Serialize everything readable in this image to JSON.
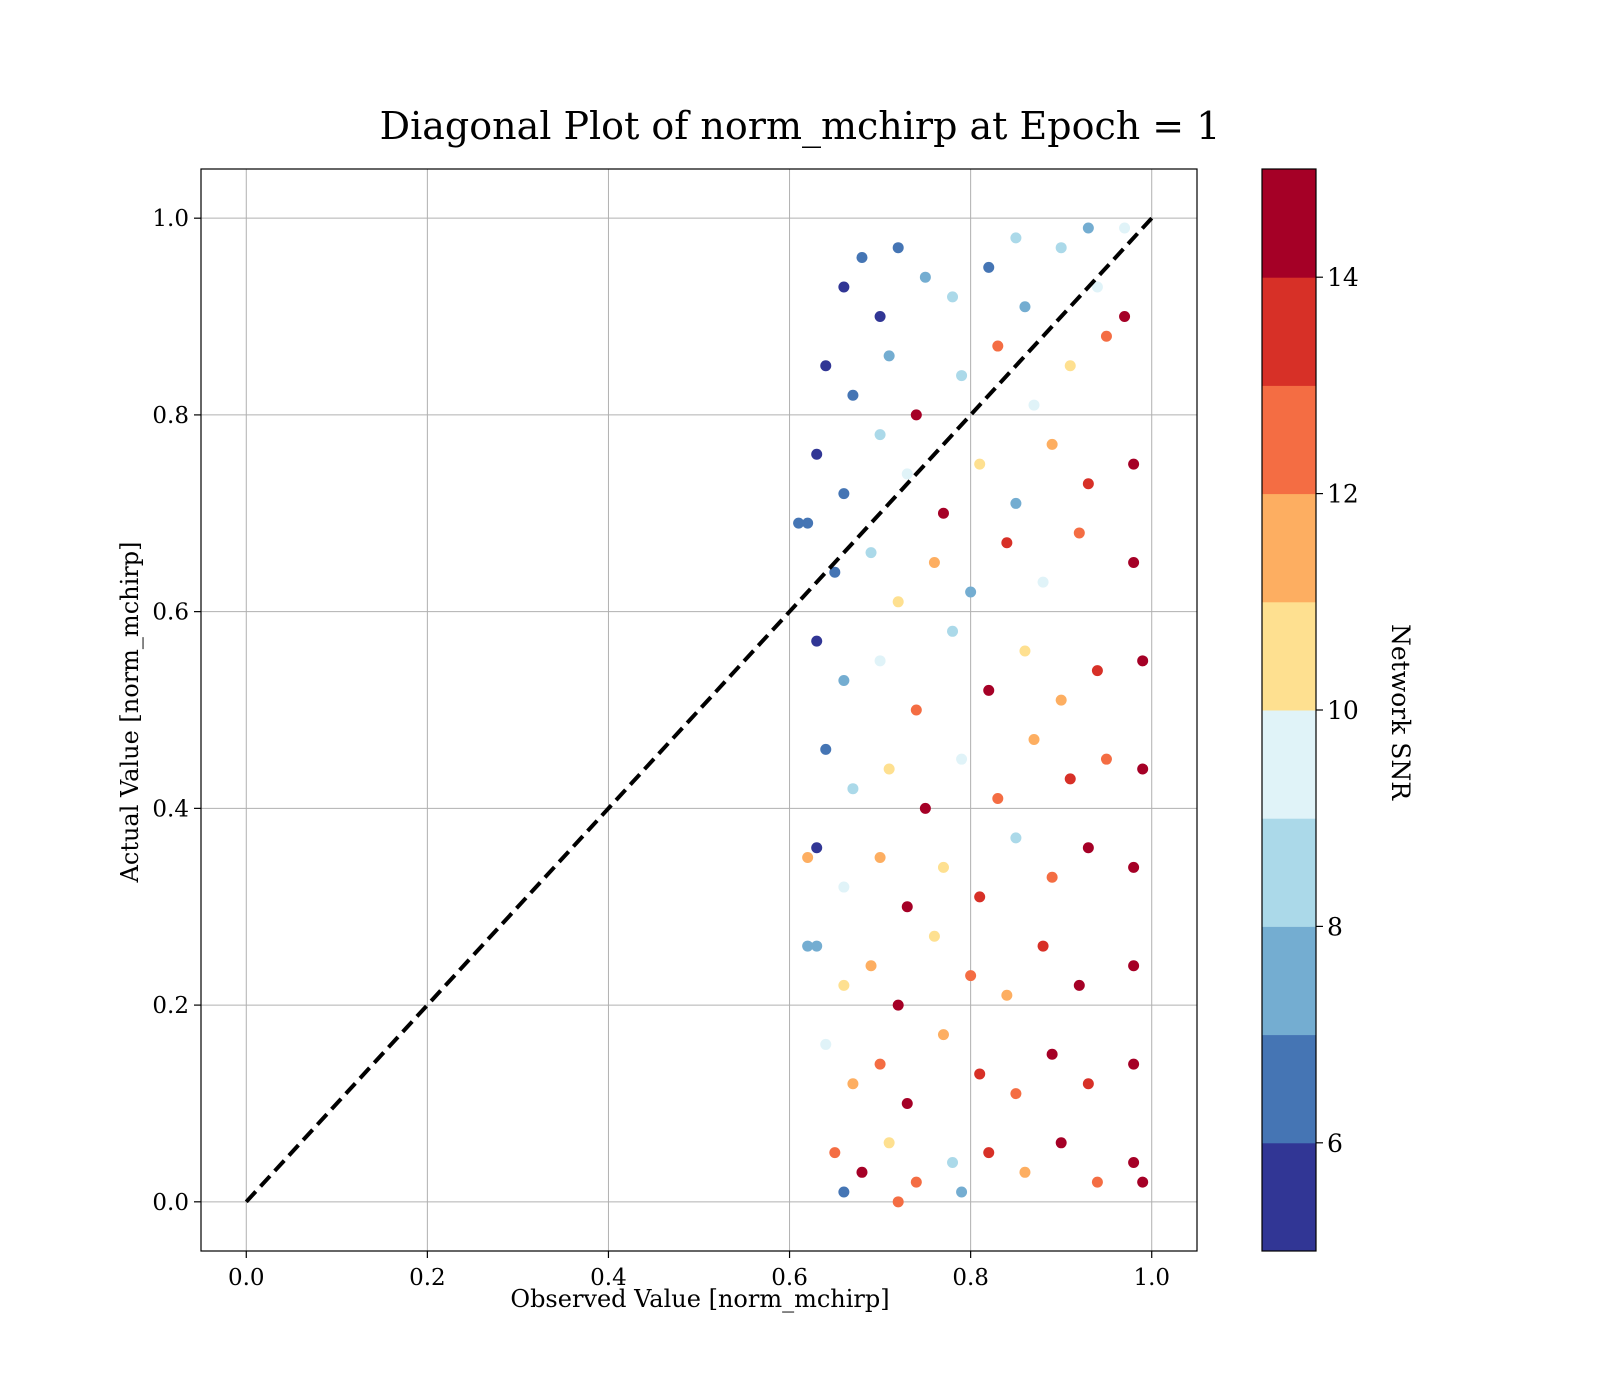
{
  "chart_data": {
    "type": "scatter",
    "title": "Diagonal Plot of norm_mchirp at Epoch = 1",
    "xlabel": "Observed Value [norm_mchirp]",
    "ylabel": "Actual Value [norm_mchirp]",
    "xlim": [
      -0.05,
      1.05
    ],
    "ylim": [
      -0.05,
      1.05
    ],
    "xticks": [
      "0.0",
      "0.2",
      "0.4",
      "0.6",
      "0.8",
      "1.0"
    ],
    "yticks": [
      "0.0",
      "0.2",
      "0.4",
      "0.6",
      "0.8",
      "1.0"
    ],
    "grid": true,
    "reference_line": {
      "x": [
        0,
        1
      ],
      "y": [
        0,
        1
      ],
      "style": "dashed",
      "color": "#000000"
    },
    "colorbar": {
      "label": "Network SNR",
      "range": [
        5,
        15
      ],
      "ticks": [
        "6",
        "8",
        "10",
        "12",
        "14"
      ],
      "colors": [
        "#313695",
        "#4575b4",
        "#74add1",
        "#abd9e9",
        "#e0f3f8",
        "#fee090",
        "#fdae61",
        "#f46d43",
        "#d73027",
        "#a50026"
      ]
    },
    "points_summary": {
      "observed_range": [
        0.61,
        1.0
      ],
      "actual_range": [
        0.0,
        1.0
      ],
      "description_of_trend": "dense column of high-SNR points near observed ≈ 0.97–1.0; lower-SNR points spread to observed ≈ 0.62"
    },
    "points": [
      [
        0.66,
        0.93,
        5.5
      ],
      [
        0.68,
        0.96,
        6.2
      ],
      [
        0.7,
        0.9,
        5.8
      ],
      [
        0.72,
        0.97,
        6.8
      ],
      [
        0.75,
        0.94,
        7.5
      ],
      [
        0.78,
        0.92,
        8.3
      ],
      [
        0.82,
        0.95,
        6.5
      ],
      [
        0.86,
        0.91,
        7.8
      ],
      [
        0.9,
        0.97,
        8.9
      ],
      [
        0.94,
        0.93,
        9.5
      ],
      [
        0.64,
        0.85,
        5.3
      ],
      [
        0.67,
        0.82,
        6.5
      ],
      [
        0.71,
        0.86,
        7.2
      ],
      [
        0.74,
        0.8,
        14.6
      ],
      [
        0.79,
        0.84,
        8.5
      ],
      [
        0.83,
        0.87,
        12.5
      ],
      [
        0.87,
        0.81,
        9.2
      ],
      [
        0.91,
        0.85,
        10.5
      ],
      [
        0.95,
        0.88,
        12.8
      ],
      [
        0.97,
        0.9,
        14.8
      ],
      [
        0.63,
        0.76,
        5.5
      ],
      [
        0.66,
        0.72,
        6.8
      ],
      [
        0.7,
        0.78,
        8.0
      ],
      [
        0.73,
        0.74,
        9.1
      ],
      [
        0.77,
        0.7,
        14.5
      ],
      [
        0.81,
        0.75,
        10.8
      ],
      [
        0.85,
        0.71,
        7.5
      ],
      [
        0.89,
        0.77,
        11.5
      ],
      [
        0.93,
        0.73,
        13.2
      ],
      [
        0.98,
        0.75,
        14.9
      ],
      [
        0.62,
        0.69,
        6.5
      ],
      [
        0.65,
        0.64,
        6.0
      ],
      [
        0.69,
        0.66,
        8.6
      ],
      [
        0.72,
        0.61,
        10.2
      ],
      [
        0.76,
        0.65,
        11.8
      ],
      [
        0.8,
        0.62,
        7.0
      ],
      [
        0.84,
        0.67,
        13.5
      ],
      [
        0.88,
        0.63,
        9.6
      ],
      [
        0.92,
        0.68,
        12.2
      ],
      [
        0.98,
        0.65,
        14.7
      ],
      [
        0.63,
        0.57,
        5.2
      ],
      [
        0.66,
        0.53,
        7.5
      ],
      [
        0.7,
        0.55,
        9.5
      ],
      [
        0.74,
        0.5,
        12.0
      ],
      [
        0.78,
        0.58,
        8.0
      ],
      [
        0.82,
        0.52,
        14.2
      ],
      [
        0.86,
        0.56,
        10.4
      ],
      [
        0.9,
        0.51,
        11.9
      ],
      [
        0.94,
        0.54,
        13.8
      ],
      [
        0.99,
        0.55,
        14.9
      ],
      [
        0.64,
        0.46,
        6.6
      ],
      [
        0.67,
        0.42,
        8.4
      ],
      [
        0.71,
        0.44,
        10.6
      ],
      [
        0.75,
        0.4,
        14.6
      ],
      [
        0.79,
        0.45,
        9.0
      ],
      [
        0.83,
        0.41,
        12.4
      ],
      [
        0.87,
        0.47,
        11.0
      ],
      [
        0.91,
        0.43,
        13.0
      ],
      [
        0.95,
        0.45,
        12.6
      ],
      [
        0.99,
        0.44,
        14.8
      ],
      [
        0.63,
        0.36,
        5.8
      ],
      [
        0.66,
        0.32,
        9.8
      ],
      [
        0.7,
        0.35,
        11.6
      ],
      [
        0.73,
        0.3,
        14.5
      ],
      [
        0.77,
        0.34,
        10.9
      ],
      [
        0.81,
        0.31,
        13.4
      ],
      [
        0.85,
        0.37,
        8.8
      ],
      [
        0.89,
        0.33,
        12.7
      ],
      [
        0.93,
        0.36,
        14.0
      ],
      [
        0.98,
        0.34,
        14.9
      ],
      [
        0.63,
        0.26,
        7.0
      ],
      [
        0.66,
        0.22,
        10.8
      ],
      [
        0.69,
        0.24,
        11.8
      ],
      [
        0.72,
        0.2,
        14.6
      ],
      [
        0.76,
        0.27,
        10.2
      ],
      [
        0.8,
        0.23,
        12.9
      ],
      [
        0.84,
        0.21,
        11.3
      ],
      [
        0.88,
        0.26,
        13.6
      ],
      [
        0.92,
        0.22,
        14.3
      ],
      [
        0.98,
        0.24,
        14.9
      ],
      [
        0.64,
        0.16,
        9.4
      ],
      [
        0.67,
        0.12,
        11.4
      ],
      [
        0.7,
        0.14,
        12.6
      ],
      [
        0.73,
        0.1,
        14.4
      ],
      [
        0.77,
        0.17,
        11.0
      ],
      [
        0.81,
        0.13,
        13.1
      ],
      [
        0.85,
        0.11,
        12.2
      ],
      [
        0.89,
        0.15,
        14.1
      ],
      [
        0.93,
        0.12,
        13.7
      ],
      [
        0.98,
        0.14,
        14.9
      ],
      [
        0.65,
        0.05,
        12.3
      ],
      [
        0.68,
        0.03,
        14.5
      ],
      [
        0.71,
        0.06,
        10.6
      ],
      [
        0.74,
        0.02,
        12.8
      ],
      [
        0.78,
        0.04,
        8.2
      ],
      [
        0.82,
        0.05,
        13.9
      ],
      [
        0.86,
        0.03,
        11.6
      ],
      [
        0.9,
        0.06,
        14.6
      ],
      [
        0.94,
        0.02,
        12.9
      ],
      [
        0.98,
        0.04,
        14.9
      ],
      [
        0.79,
        0.01,
        7.2
      ],
      [
        0.66,
        0.01,
        6.4
      ],
      [
        0.72,
        0.0,
        12.0
      ],
      [
        0.85,
        0.98,
        8.0
      ],
      [
        0.93,
        0.99,
        7.1
      ],
      [
        0.97,
        0.99,
        9.3
      ],
      [
        0.61,
        0.69,
        6.9
      ],
      [
        0.62,
        0.35,
        11.8
      ],
      [
        0.62,
        0.26,
        7.3
      ],
      [
        0.99,
        0.02,
        14.9
      ]
    ]
  }
}
